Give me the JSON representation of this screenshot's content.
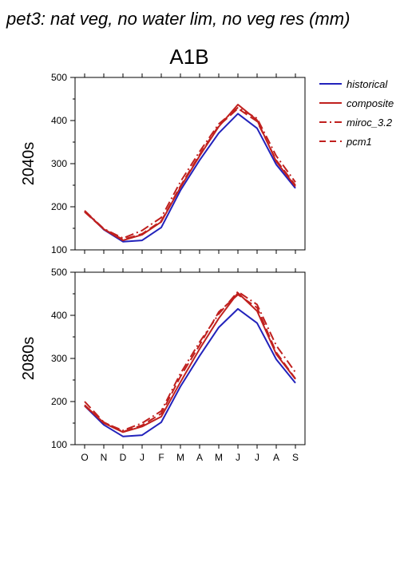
{
  "figure": {
    "suptitle": "pet3: nat veg, no water lim, no veg res (mm)",
    "scenario": "A1B"
  },
  "legend": [
    {
      "label": "historical",
      "color": "#2222bb",
      "dash": "solid"
    },
    {
      "label": "composite",
      "color": "#c0201e",
      "dash": "solid"
    },
    {
      "label": "miroc_3.2",
      "color": "#c0201e",
      "dash": "dashdot"
    },
    {
      "label": "pcm1",
      "color": "#c0201e",
      "dash": "dash"
    }
  ],
  "chart_data": [
    {
      "type": "line",
      "title": "2040s",
      "categories": [
        "O",
        "N",
        "D",
        "J",
        "F",
        "M",
        "A",
        "M",
        "J",
        "J",
        "A",
        "S"
      ],
      "ylim": [
        100,
        500
      ],
      "yticks": [
        100,
        200,
        300,
        400,
        500
      ],
      "grid": false,
      "series": [
        {
          "name": "historical",
          "values": [
            190,
            147,
            119,
            122,
            152,
            238,
            308,
            371,
            416,
            382,
            298,
            243
          ]
        },
        {
          "name": "composite",
          "values": [
            190,
            148,
            122,
            135,
            165,
            245,
            318,
            386,
            437,
            401,
            305,
            247
          ]
        },
        {
          "name": "miroc_3.2",
          "values": [
            191,
            149,
            127,
            145,
            175,
            258,
            328,
            392,
            430,
            405,
            318,
            257
          ]
        },
        {
          "name": "pcm1",
          "values": [
            188,
            148,
            124,
            137,
            167,
            248,
            321,
            388,
            428,
            398,
            308,
            250
          ]
        }
      ]
    },
    {
      "type": "line",
      "title": "2080s",
      "categories": [
        "O",
        "N",
        "D",
        "J",
        "F",
        "M",
        "A",
        "M",
        "J",
        "J",
        "A",
        "S"
      ],
      "ylim": [
        100,
        500
      ],
      "yticks": [
        100,
        200,
        300,
        400,
        500
      ],
      "grid": false,
      "series": [
        {
          "name": "historical",
          "values": [
            190,
            146,
            119,
            122,
            152,
            235,
            306,
            372,
            415,
            382,
            298,
            243
          ]
        },
        {
          "name": "composite",
          "values": [
            192,
            150,
            129,
            142,
            165,
            245,
            322,
            393,
            452,
            410,
            310,
            252
          ]
        },
        {
          "name": "miroc_3.2",
          "values": [
            190,
            151,
            133,
            150,
            178,
            265,
            338,
            403,
            455,
            425,
            330,
            268
          ]
        },
        {
          "name": "pcm1",
          "values": [
            200,
            152,
            130,
            145,
            172,
            258,
            331,
            408,
            448,
            418,
            314,
            253
          ]
        }
      ]
    }
  ]
}
